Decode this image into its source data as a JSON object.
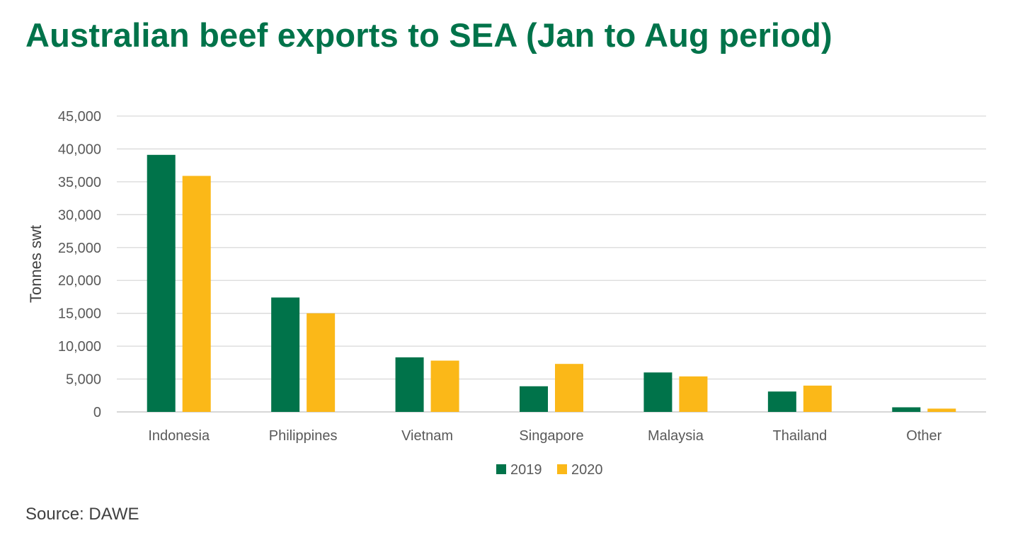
{
  "title": "Australian beef exports to SEA (Jan to Aug period)",
  "source": "Source: DAWE",
  "chart_data": {
    "type": "bar",
    "title": "Australian beef exports to SEA (Jan to Aug period)",
    "xlabel": "",
    "ylabel": "Tonnes swt",
    "ylim": [
      0,
      45000
    ],
    "yticks": [
      0,
      5000,
      10000,
      15000,
      20000,
      25000,
      30000,
      35000,
      40000,
      45000
    ],
    "ytick_labels": [
      "0",
      "5,000",
      "10,000",
      "15,000",
      "20,000",
      "25,000",
      "30,000",
      "35,000",
      "40,000",
      "45,000"
    ],
    "grid": true,
    "legend_position": "bottom",
    "categories": [
      "Indonesia",
      "Philippines",
      "Vietnam",
      "Singapore",
      "Malaysia",
      "Thailand",
      "Other"
    ],
    "series": [
      {
        "name": "2019",
        "color": "#00734a",
        "values": [
          39100,
          17400,
          8300,
          3900,
          6000,
          3100,
          700
        ]
      },
      {
        "name": "2020",
        "color": "#fbb818",
        "values": [
          35900,
          15000,
          7800,
          7300,
          5400,
          4000,
          500
        ]
      }
    ]
  }
}
